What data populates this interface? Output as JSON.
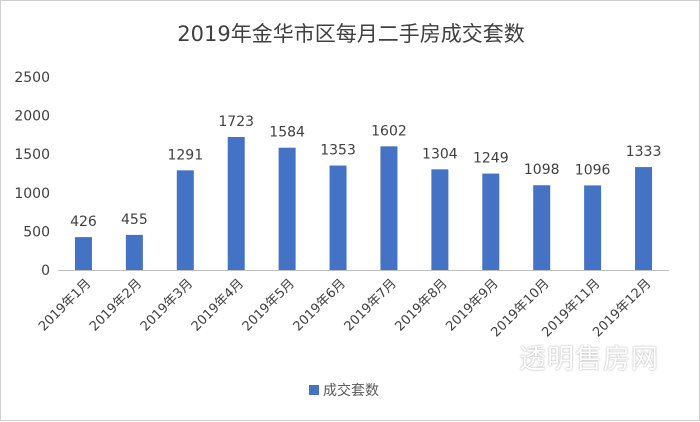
{
  "chart_data": {
    "type": "bar",
    "title": "2019年金华市区每月二手房成交套数",
    "categories": [
      "2019年1月",
      "2019年2月",
      "2019年3月",
      "2019年4月",
      "2019年5月",
      "2019年6月",
      "2019年7月",
      "2019年8月",
      "2019年9月",
      "2019年10月",
      "2019年11月",
      "2019年12月"
    ],
    "series": [
      {
        "name": "成交套数",
        "values": [
          426,
          455,
          1291,
          1723,
          1584,
          1353,
          1602,
          1304,
          1249,
          1098,
          1096,
          1333
        ]
      }
    ],
    "yticks": [
      0,
      500,
      1000,
      1500,
      2000,
      2500
    ],
    "ylim": [
      0,
      2500
    ],
    "grid": false,
    "legend": "bottom",
    "bar_color": "#4472C4",
    "data_labels": true
  },
  "watermark": "透明售房网"
}
